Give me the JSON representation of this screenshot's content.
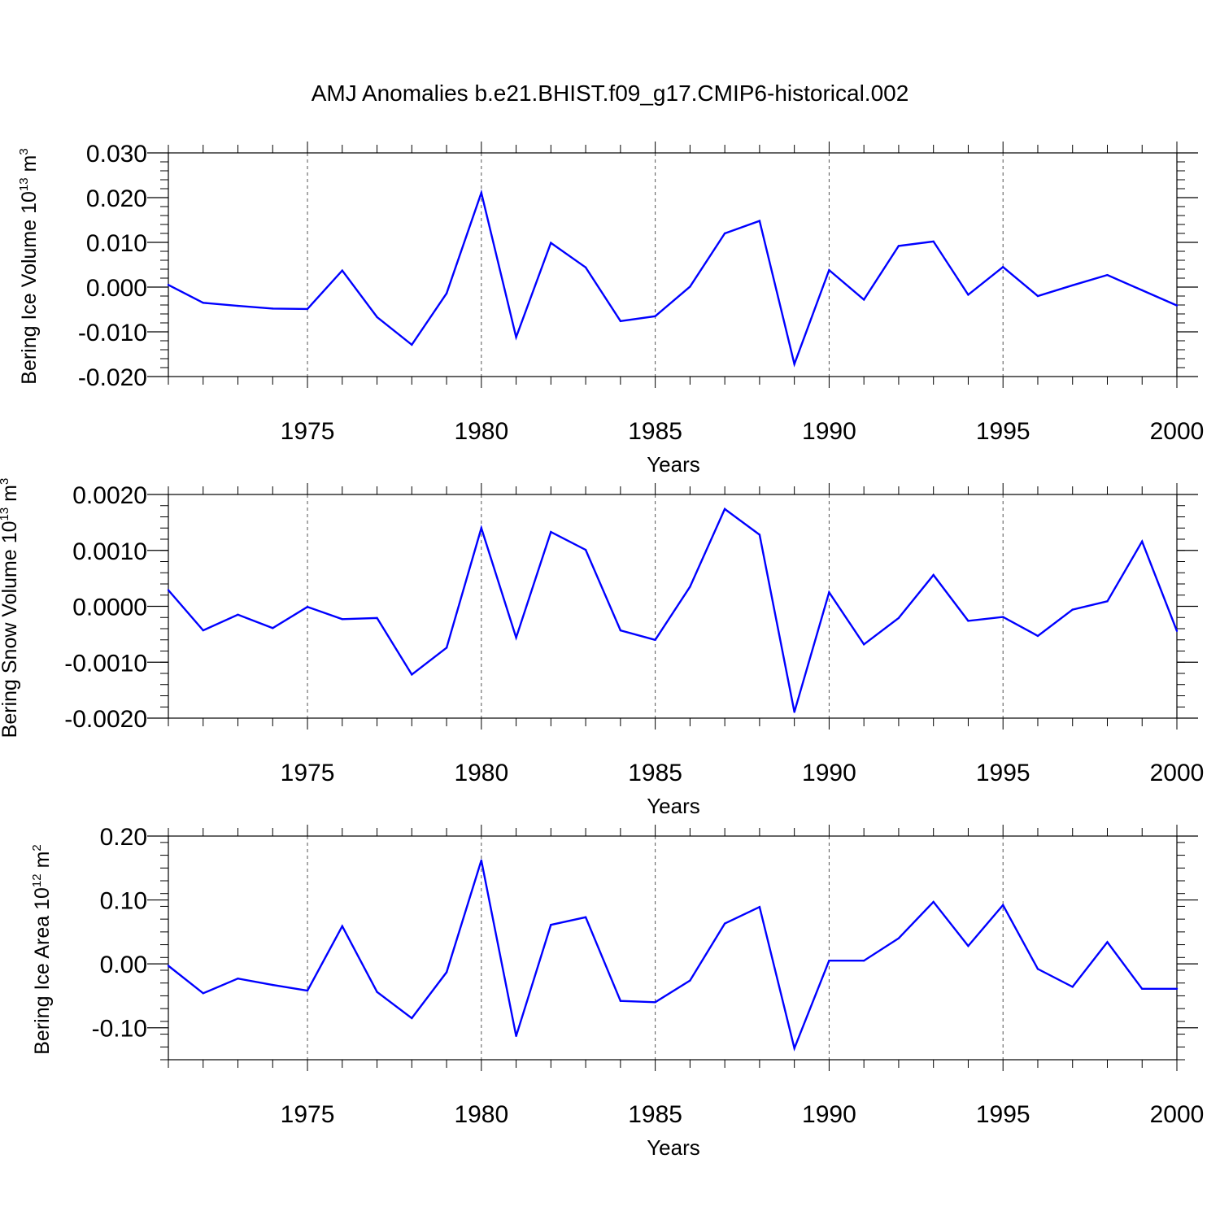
{
  "title": "AMJ Anomalies b.e21.BHIST.f09_g17.CMIP6-historical.002",
  "colors": {
    "series_line": "#0000ff",
    "axis": "#000000",
    "gridline": "#555555",
    "background": "#ffffff"
  },
  "chart_data": [
    {
      "type": "line",
      "ylabel": {
        "base": "Bering Ice Volume 10",
        "exp1": "13",
        "unit": " m",
        "exp2": "3"
      },
      "xlabel": "Years",
      "xlim": [
        1971,
        2000
      ],
      "ylim": [
        -0.02,
        0.03
      ],
      "yticks": [
        -0.02,
        -0.01,
        0.0,
        0.01,
        0.02,
        0.03
      ],
      "ytick_labels": [
        "-0.020",
        "-0.010",
        "0.000",
        "0.010",
        "0.020",
        "0.030"
      ],
      "xticks": [
        1975,
        1980,
        1985,
        1990,
        1995,
        2000
      ],
      "xtick_labels": [
        "1975",
        "1980",
        "1985",
        "1990",
        "1995",
        "2000"
      ],
      "grid": "vertical dashed at major years",
      "x": [
        1971,
        1972,
        1973,
        1974,
        1975,
        1976,
        1977,
        1978,
        1979,
        1980,
        1981,
        1982,
        1983,
        1984,
        1985,
        1986,
        1987,
        1988,
        1989,
        1990,
        1991,
        1992,
        1993,
        1994,
        1995,
        1996,
        1997,
        1998,
        1999,
        2000
      ],
      "y": [
        0.0005,
        -0.0035,
        -0.0042,
        -0.0048,
        -0.0049,
        0.0037,
        -0.0067,
        -0.0129,
        -0.0014,
        0.0211,
        -0.0112,
        0.0099,
        0.0044,
        -0.0076,
        -0.0065,
        0.0001,
        0.012,
        0.0148,
        -0.0172,
        0.0038,
        -0.0028,
        0.0092,
        0.0102,
        -0.0017,
        0.0045,
        -0.002,
        0.0004,
        0.0027,
        -0.0007,
        -0.0041
      ]
    },
    {
      "type": "line",
      "ylabel": {
        "base": "Bering Snow Volume 10",
        "exp1": "13",
        "unit": " m",
        "exp2": "3"
      },
      "xlabel": "Years",
      "xlim": [
        1971,
        2000
      ],
      "ylim": [
        -0.002,
        0.002
      ],
      "yticks": [
        -0.002,
        -0.001,
        0.0,
        0.001,
        0.002
      ],
      "ytick_labels": [
        "-0.0020",
        "-0.0010",
        "0.0000",
        "0.0010",
        "0.0020"
      ],
      "xticks": [
        1975,
        1980,
        1985,
        1990,
        1995,
        2000
      ],
      "xtick_labels": [
        "1975",
        "1980",
        "1985",
        "1990",
        "1995",
        "2000"
      ],
      "grid": "vertical dashed at major years",
      "x": [
        1971,
        1972,
        1973,
        1974,
        1975,
        1976,
        1977,
        1978,
        1979,
        1980,
        1981,
        1982,
        1983,
        1984,
        1985,
        1986,
        1987,
        1988,
        1989,
        1990,
        1991,
        1992,
        1993,
        1994,
        1995,
        1996,
        1997,
        1998,
        1999,
        2000
      ],
      "y": [
        0.00029,
        -0.00043,
        -0.00015,
        -0.00039,
        -1e-05,
        -0.00023,
        -0.00021,
        -0.00122,
        -0.00074,
        0.0014,
        -0.00056,
        0.00133,
        0.00101,
        -0.00043,
        -0.0006,
        0.00035,
        0.00174,
        0.00128,
        -0.00189,
        0.00025,
        -0.00068,
        -0.00021,
        0.00056,
        -0.00026,
        -0.00019,
        -0.00053,
        -6e-05,
        9e-05,
        0.00116,
        -0.00044
      ]
    },
    {
      "type": "line",
      "ylabel": {
        "base": "Bering Ice Area 10",
        "exp1": "12",
        "unit": " m",
        "exp2": "2"
      },
      "xlabel": "Years",
      "xlim": [
        1971,
        2000
      ],
      "ylim": [
        -0.15,
        0.2
      ],
      "yticks": [
        -0.1,
        0.0,
        0.1,
        0.2
      ],
      "ytick_labels": [
        "-0.10",
        "0.00",
        "0.10",
        "0.20"
      ],
      "xticks": [
        1975,
        1980,
        1985,
        1990,
        1995,
        2000
      ],
      "xtick_labels": [
        "1975",
        "1980",
        "1985",
        "1990",
        "1995",
        "2000"
      ],
      "grid": "vertical dashed at major years",
      "x": [
        1971,
        1972,
        1973,
        1974,
        1975,
        1976,
        1977,
        1978,
        1979,
        1980,
        1981,
        1982,
        1983,
        1984,
        1985,
        1986,
        1987,
        1988,
        1989,
        1990,
        1991,
        1992,
        1993,
        1994,
        1995,
        1996,
        1997,
        1998,
        1999,
        2000
      ],
      "y": [
        -0.003,
        -0.046,
        -0.023,
        -0.033,
        -0.042,
        0.059,
        -0.044,
        -0.085,
        -0.013,
        0.162,
        -0.113,
        0.061,
        0.073,
        -0.058,
        -0.06,
        -0.026,
        0.063,
        0.089,
        -0.132,
        0.005,
        0.005,
        0.04,
        0.097,
        0.028,
        0.092,
        -0.008,
        -0.036,
        0.034,
        -0.039,
        -0.039
      ]
    }
  ]
}
